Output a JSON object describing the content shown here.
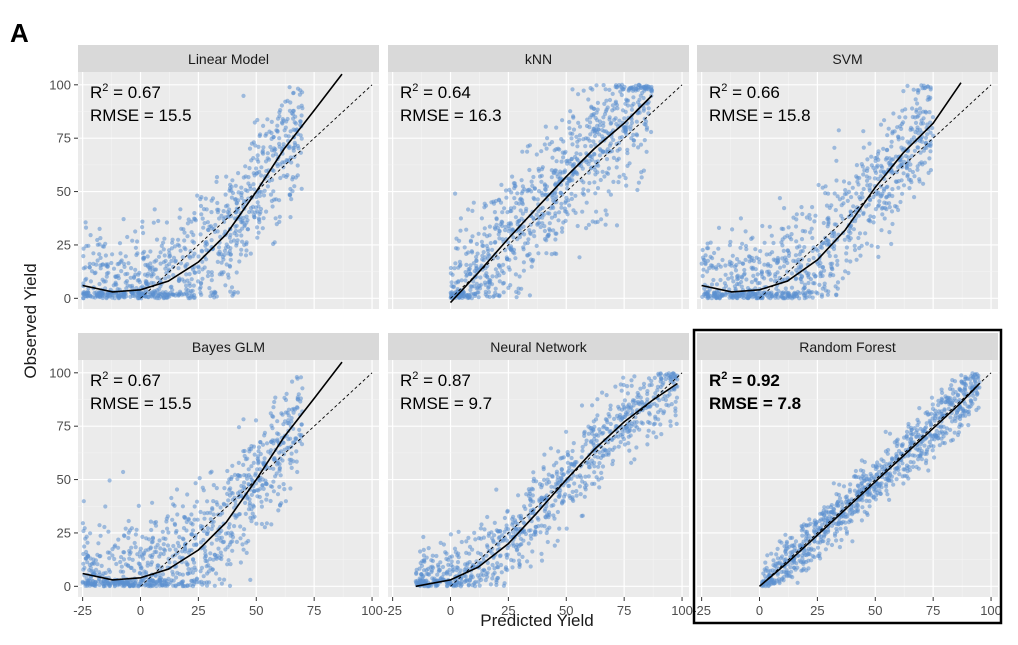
{
  "figure": {
    "panel_letter": "A"
  },
  "chart_data": {
    "type": "scatter",
    "xlabel": "Predicted Yield",
    "ylabel": "Observed Yield",
    "xlim": [
      -27,
      103
    ],
    "ylim": [
      -5,
      106
    ],
    "x_ticks": [
      -25,
      0,
      25,
      50,
      75,
      100
    ],
    "y_ticks": [
      0,
      25,
      50,
      75,
      100
    ],
    "x_tick_labels": [
      "-25",
      "0",
      "25",
      "50",
      "75",
      "100"
    ],
    "y_tick_labels": [
      "0",
      "25",
      "50",
      "75",
      "100"
    ],
    "grid": true,
    "point_color": "#5b8fcf",
    "fit_line_color": "#000000",
    "identity_line_color": "#000000",
    "panel_background": "#ebebeb",
    "strip_background": "#d9d9d9",
    "panels": [
      {
        "name": "Linear Model",
        "r2_label": "R",
        "r2_sup": "2",
        "r2_value": " = 0.67",
        "rmse": "RMSE = 15.5",
        "highlight": false,
        "pred_range": [
          -25,
          70
        ],
        "spread": 14,
        "fit_curve": [
          [
            -25,
            6
          ],
          [
            -12,
            3
          ],
          [
            0,
            4
          ],
          [
            12,
            8
          ],
          [
            25,
            17
          ],
          [
            37,
            30
          ],
          [
            50,
            50
          ],
          [
            62,
            70
          ],
          [
            75,
            88
          ],
          [
            87,
            105
          ]
        ]
      },
      {
        "name": "kNN",
        "r2_label": "R",
        "r2_sup": "2",
        "r2_value": " = 0.64",
        "rmse": "RMSE = 16.3",
        "highlight": false,
        "pred_range": [
          0,
          87
        ],
        "spread": 15,
        "fit_curve": [
          [
            0,
            -2
          ],
          [
            12,
            12
          ],
          [
            25,
            28
          ],
          [
            37,
            42
          ],
          [
            50,
            57
          ],
          [
            62,
            70
          ],
          [
            75,
            82
          ],
          [
            87,
            95
          ]
        ]
      },
      {
        "name": "SVM",
        "r2_label": "R",
        "r2_sup": "2",
        "r2_value": " = 0.66",
        "rmse": "RMSE = 15.8",
        "highlight": false,
        "pred_range": [
          -25,
          75
        ],
        "spread": 14,
        "fit_curve": [
          [
            -25,
            6
          ],
          [
            -12,
            3
          ],
          [
            0,
            4
          ],
          [
            12,
            8
          ],
          [
            25,
            18
          ],
          [
            37,
            32
          ],
          [
            50,
            52
          ],
          [
            62,
            68
          ],
          [
            75,
            82
          ],
          [
            87,
            101
          ]
        ]
      },
      {
        "name": "Bayes GLM",
        "r2_label": "R",
        "r2_sup": "2",
        "r2_value": " = 0.67",
        "rmse": "RMSE = 15.5",
        "highlight": false,
        "pred_range": [
          -25,
          70
        ],
        "spread": 14,
        "fit_curve": [
          [
            -25,
            6
          ],
          [
            -12,
            3
          ],
          [
            0,
            4
          ],
          [
            12,
            8
          ],
          [
            25,
            17
          ],
          [
            37,
            30
          ],
          [
            50,
            50
          ],
          [
            62,
            70
          ],
          [
            75,
            88
          ],
          [
            87,
            105
          ]
        ]
      },
      {
        "name": "Neural Network",
        "r2_label": "R",
        "r2_sup": "2",
        "r2_value": " = 0.87",
        "rmse": "RMSE = 9.7",
        "highlight": false,
        "pred_range": [
          -15,
          98
        ],
        "spread": 9,
        "fit_curve": [
          [
            -15,
            0
          ],
          [
            0,
            3
          ],
          [
            12,
            9
          ],
          [
            25,
            20
          ],
          [
            37,
            34
          ],
          [
            50,
            50
          ],
          [
            62,
            64
          ],
          [
            75,
            77
          ],
          [
            87,
            87
          ],
          [
            98,
            95
          ]
        ]
      },
      {
        "name": "Random Forest",
        "r2_label": "R",
        "r2_sup": "2",
        "r2_value": " = 0.92",
        "rmse": "RMSE = 7.8",
        "highlight": true,
        "pred_range": [
          0,
          95
        ],
        "spread": 6,
        "fit_curve": [
          [
            0,
            0
          ],
          [
            12,
            11
          ],
          [
            25,
            24
          ],
          [
            37,
            36
          ],
          [
            50,
            49
          ],
          [
            62,
            61
          ],
          [
            75,
            74
          ],
          [
            87,
            86
          ],
          [
            95,
            95
          ]
        ]
      }
    ]
  }
}
